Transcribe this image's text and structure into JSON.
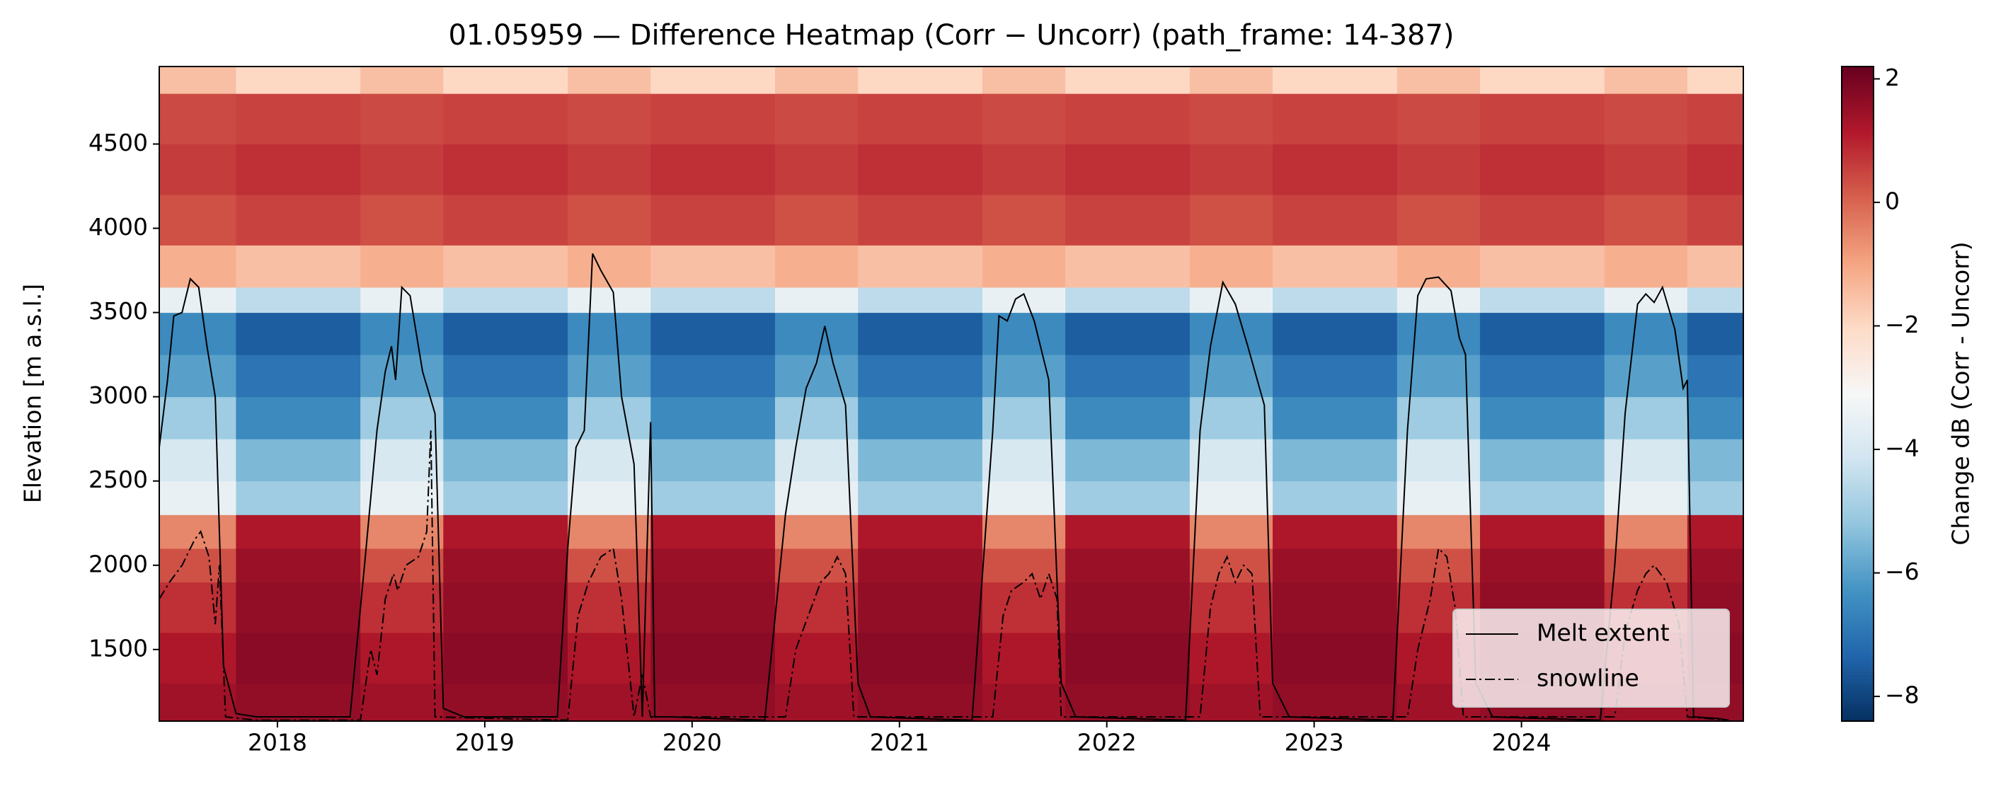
{
  "chart_data": {
    "type": "heatmap",
    "title": "01.05959 — Difference Heatmap (Corr − Uncorr) (path_frame: 14-387)",
    "y_label": "Elevation [m a.s.l.]",
    "colorbar_label": "Change dB (Corr - Uncorr)",
    "colormap": "RdBu_r",
    "clim": [
      -8.4,
      2.2
    ],
    "cticks": [
      {
        "value": 2,
        "label": "2"
      },
      {
        "value": 0,
        "label": "0"
      },
      {
        "value": -2,
        "label": "−2"
      },
      {
        "value": -4,
        "label": "−4"
      },
      {
        "value": -6,
        "label": "−6"
      },
      {
        "value": -8,
        "label": "−8"
      }
    ],
    "xlim": [
      2017.43,
      2025.07
    ],
    "xticks": [
      2018,
      2019,
      2020,
      2021,
      2022,
      2023,
      2024
    ],
    "ylim": [
      1075,
      4960
    ],
    "yticks": [
      1500,
      2000,
      2500,
      3000,
      3500,
      4000,
      4500
    ],
    "x_edges": [
      2017.43,
      2017.8,
      2018.4,
      2018.8,
      2019.4,
      2019.8,
      2020.4,
      2020.8,
      2021.4,
      2021.8,
      2022.4,
      2022.8,
      2023.4,
      2023.8,
      2024.4,
      2024.8,
      2025.07
    ],
    "y_edges": [
      1075,
      1300,
      1600,
      1900,
      2100,
      2300,
      2500,
      2750,
      3000,
      3250,
      3500,
      3650,
      3900,
      4200,
      4500,
      4800,
      4960
    ],
    "z": [
      [
        1.4,
        1.6,
        1.4,
        1.6,
        1.4,
        1.6,
        1.4,
        1.6,
        1.4,
        1.6,
        1.4,
        1.6,
        1.4,
        1.6,
        1.4,
        1.6
      ],
      [
        1.2,
        1.7,
        1.2,
        1.7,
        1.2,
        1.7,
        1.2,
        1.7,
        1.2,
        1.7,
        1.2,
        1.7,
        1.2,
        1.7,
        1.2,
        1.7
      ],
      [
        0.8,
        1.6,
        0.8,
        1.6,
        0.8,
        1.6,
        0.8,
        1.6,
        0.8,
        1.6,
        0.8,
        1.6,
        0.8,
        1.6,
        0.8,
        1.6
      ],
      [
        0.3,
        1.5,
        0.3,
        1.5,
        0.3,
        1.5,
        0.3,
        1.5,
        0.3,
        1.5,
        0.3,
        1.5,
        0.3,
        1.5,
        0.3,
        1.5
      ],
      [
        -0.5,
        1.2,
        -0.5,
        1.2,
        -0.5,
        1.2,
        -0.5,
        1.2,
        -0.5,
        1.2,
        -0.5,
        1.2,
        -0.5,
        1.2,
        -0.5,
        1.2
      ],
      [
        -3.5,
        -5,
        -3.5,
        -5,
        -3.5,
        -5,
        -3.5,
        -5,
        -3.5,
        -5,
        -3.5,
        -5,
        -3.5,
        -5,
        -3.5,
        -5
      ],
      [
        -4,
        -5.5,
        -4,
        -5.5,
        -4,
        -5.5,
        -4,
        -5.5,
        -4,
        -5.5,
        -4,
        -5.5,
        -4,
        -5.5,
        -4,
        -5.5
      ],
      [
        -5,
        -6.5,
        -5,
        -6.5,
        -5,
        -6.5,
        -5,
        -6.5,
        -5,
        -6.5,
        -5,
        -6.5,
        -5,
        -6.5,
        -5,
        -6.5
      ],
      [
        -6,
        -7,
        -6,
        -7,
        -6,
        -7,
        -6,
        -7,
        -6,
        -7,
        -6,
        -7,
        -6,
        -7,
        -6,
        -7
      ],
      [
        -6.5,
        -7.5,
        -6.5,
        -7.5,
        -6.5,
        -7.5,
        -6.5,
        -7.5,
        -6.5,
        -7.5,
        -6.5,
        -7.5,
        -6.5,
        -7.5,
        -6.5,
        -7.5
      ],
      [
        -3.5,
        -4.5,
        -3.5,
        -4.5,
        -3.5,
        -4.5,
        -3.5,
        -4.5,
        -3.5,
        -4.5,
        -3.5,
        -4.5,
        -3.5,
        -4.5,
        -3.5,
        -4.5
      ],
      [
        -1.2,
        -1.5,
        -1.2,
        -1.5,
        -1.2,
        -1.5,
        -1.2,
        -1.5,
        -1.2,
        -1.5,
        -1.2,
        -1.5,
        -1.2,
        -1.5,
        -1.2,
        -1.5
      ],
      [
        0.3,
        0.5,
        0.3,
        0.5,
        0.3,
        0.5,
        0.3,
        0.5,
        0.3,
        0.5,
        0.3,
        0.5,
        0.3,
        0.5,
        0.3,
        0.5
      ],
      [
        0.6,
        0.8,
        0.6,
        0.8,
        0.6,
        0.8,
        0.6,
        0.8,
        0.6,
        0.8,
        0.6,
        0.8,
        0.6,
        0.8,
        0.6,
        0.8
      ],
      [
        0.4,
        0.5,
        0.4,
        0.5,
        0.4,
        0.5,
        0.4,
        0.5,
        0.4,
        0.5,
        0.4,
        0.5,
        0.4,
        0.5,
        0.4,
        0.5
      ],
      [
        -1.5,
        -2,
        -1.5,
        -2,
        -1.5,
        -2,
        -1.5,
        -2,
        -1.5,
        -2,
        -1.5,
        -2,
        -1.5,
        -2,
        -1.5,
        -2
      ]
    ],
    "legend": "lower right",
    "series": [
      {
        "name": "Melt extent",
        "color": "#000000",
        "style": "solid",
        "x": [
          2017.43,
          2017.47,
          2017.5,
          2017.54,
          2017.58,
          2017.62,
          2017.66,
          2017.7,
          2017.74,
          2017.8,
          2017.9,
          2018.35,
          2018.42,
          2018.48,
          2018.52,
          2018.55,
          2018.57,
          2018.6,
          2018.64,
          2018.7,
          2018.76,
          2018.8,
          2018.9,
          2019.35,
          2019.4,
          2019.44,
          2019.48,
          2019.52,
          2019.56,
          2019.62,
          2019.66,
          2019.72,
          2019.76,
          2019.8,
          2019.82,
          2019.9,
          2020.35,
          2020.45,
          2020.5,
          2020.55,
          2020.6,
          2020.64,
          2020.68,
          2020.74,
          2020.8,
          2020.86,
          2021.35,
          2021.45,
          2021.48,
          2021.52,
          2021.56,
          2021.6,
          2021.65,
          2021.72,
          2021.78,
          2021.85,
          2022.38,
          2022.45,
          2022.5,
          2022.56,
          2022.62,
          2022.68,
          2022.76,
          2022.8,
          2022.88,
          2023.38,
          2023.45,
          2023.5,
          2023.54,
          2023.6,
          2023.66,
          2023.7,
          2023.73,
          2023.78,
          2023.86,
          2024.38,
          2024.45,
          2024.5,
          2024.56,
          2024.6,
          2024.64,
          2024.68,
          2024.74,
          2024.78,
          2024.8,
          2024.83,
          2024.95,
          2025.0
        ],
        "values": [
          2700,
          3100,
          3480,
          3500,
          3700,
          3650,
          3300,
          3000,
          1400,
          1120,
          1100,
          1100,
          2000,
          2800,
          3150,
          3300,
          3100,
          3650,
          3600,
          3150,
          2900,
          1150,
          1100,
          1100,
          2100,
          2700,
          2800,
          3850,
          3750,
          3620,
          3000,
          2600,
          1100,
          2850,
          1100,
          1100,
          1080,
          2300,
          2700,
          3050,
          3200,
          3420,
          3200,
          2950,
          1300,
          1100,
          1080,
          2800,
          3480,
          3450,
          3580,
          3610,
          3450,
          3100,
          1300,
          1100,
          1080,
          2800,
          3300,
          3680,
          3550,
          3300,
          2950,
          1300,
          1100,
          1080,
          2800,
          3600,
          3700,
          3710,
          3630,
          3350,
          3250,
          1300,
          1100,
          1080,
          2000,
          2900,
          3550,
          3610,
          3560,
          3650,
          3400,
          3050,
          3100,
          1100,
          1090,
          1080
        ]
      },
      {
        "name": "snowline",
        "color": "#000000",
        "style": "dashdot",
        "x": [
          2017.43,
          2017.48,
          2017.54,
          2017.6,
          2017.63,
          2017.67,
          2017.7,
          2017.72,
          2017.75,
          2017.9,
          2018.4,
          2018.45,
          2018.48,
          2018.52,
          2018.56,
          2018.58,
          2018.62,
          2018.68,
          2018.72,
          2018.74,
          2018.76,
          2019.4,
          2019.45,
          2019.5,
          2019.56,
          2019.62,
          2019.66,
          2019.72,
          2019.76,
          2019.8,
          2020.45,
          2020.5,
          2020.56,
          2020.62,
          2020.66,
          2020.7,
          2020.74,
          2020.78,
          2021.45,
          2021.5,
          2021.54,
          2021.6,
          2021.64,
          2021.68,
          2021.72,
          2021.76,
          2021.78,
          2022.45,
          2022.5,
          2022.54,
          2022.58,
          2022.62,
          2022.66,
          2022.7,
          2022.74,
          2023.45,
          2023.5,
          2023.56,
          2023.6,
          2023.64,
          2023.68,
          2023.72,
          2024.45,
          2024.5,
          2024.56,
          2024.6,
          2024.64,
          2024.7,
          2024.76,
          2024.8,
          2025.0
        ],
        "values": [
          1800,
          1900,
          2000,
          2150,
          2200,
          2050,
          1650,
          2000,
          1100,
          1080,
          1080,
          1500,
          1350,
          1800,
          1950,
          1850,
          2000,
          2050,
          2200,
          2800,
          1100,
          1080,
          1700,
          1900,
          2050,
          2100,
          1800,
          1100,
          1350,
          1100,
          1100,
          1500,
          1700,
          1900,
          1950,
          2050,
          1950,
          1100,
          1100,
          1700,
          1850,
          1900,
          1950,
          1800,
          1950,
          1800,
          1100,
          1100,
          1750,
          1950,
          2050,
          1900,
          2000,
          1950,
          1100,
          1100,
          1500,
          1800,
          2100,
          2050,
          1750,
          1100,
          1100,
          1600,
          1850,
          1950,
          2000,
          1900,
          1650,
          1100,
          1080
        ]
      }
    ]
  }
}
